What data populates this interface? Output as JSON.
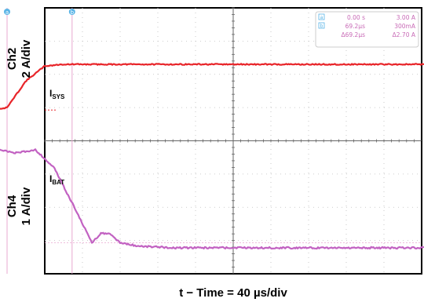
{
  "chart_data": {
    "type": "line",
    "panels": [
      {
        "name": "top",
        "ylabel_line1": "Ch2",
        "ylabel_line2": "2 A/div",
        "trace_label": "I",
        "trace_sub": "SYS",
        "color": "#e8252a",
        "series": {
          "x_us": [
            -360,
            -250,
            -240,
            -220,
            -200,
            -180,
            -120,
            0,
            360
          ],
          "y_A": [
            0.3,
            0.3,
            0.4,
            2.0,
            2.9,
            3.0,
            3.0,
            3.0,
            3.0
          ]
        }
      },
      {
        "name": "bottom",
        "ylabel_line1": "Ch4",
        "ylabel_line2": "1 A/div",
        "trace_label": "I",
        "trace_sub": "BAT",
        "color": "#c262c2",
        "series": {
          "x_us": [
            -360,
            -250,
            -230,
            -210,
            -190,
            -170,
            -150,
            -140,
            -130,
            -120,
            -100,
            -60,
            0,
            360
          ],
          "y_A": [
            3.05,
            3.05,
            2.95,
            3.05,
            2.5,
            1.4,
            0.25,
            0.55,
            0.5,
            0.25,
            0.15,
            0.1,
            0.1,
            0.1
          ]
        }
      }
    ],
    "xlabel": "t − Time = 40 µs/div",
    "grid": true,
    "cursors": [
      {
        "id": "a",
        "x_us": -240,
        "label": "a"
      },
      {
        "id": "b",
        "x_us": -171,
        "label": "b"
      }
    ],
    "cursor_readout": {
      "rows": [
        {
          "marker": "a",
          "time": "0.00 s",
          "value": "3.00 A"
        },
        {
          "marker": "b",
          "time": "69.2µs",
          "value": "300mA"
        },
        {
          "marker": "",
          "time": "Δ69.2µs",
          "value": "Δ2.70 A"
        }
      ]
    }
  },
  "colors": {
    "ch2": "#e8252a",
    "ch4": "#c262c2",
    "cursor": "#e8a8d0",
    "readout_text": "#c86ab6",
    "marker": "#5ab4e6"
  }
}
